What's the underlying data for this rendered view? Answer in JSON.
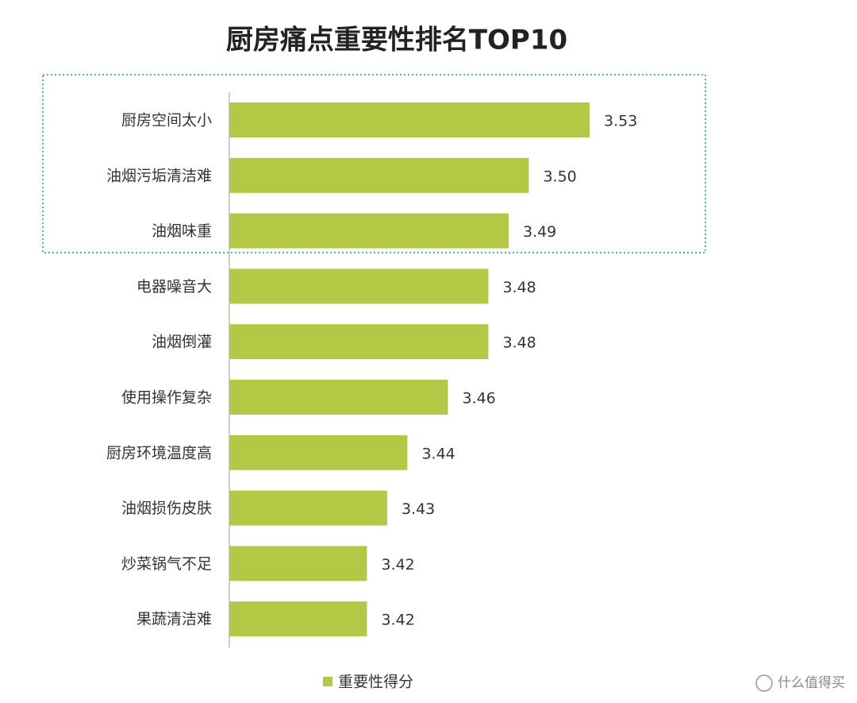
{
  "chart_data": {
    "type": "hbar",
    "title": "厨房痛点重要性排名TOP10",
    "categories": [
      "厨房空间太小",
      "油烟污垢清洁难",
      "油烟味重",
      "电器噪音大",
      "油烟倒灌",
      "使用操作复杂",
      "厨房环境温度高",
      "油烟损伤皮肤",
      "炒菜锅气不足",
      "果蔬清洁难"
    ],
    "series": [
      {
        "name": "重要性得分",
        "color": "#b5c845",
        "values": [
          3.53,
          3.5,
          3.49,
          3.48,
          3.48,
          3.46,
          3.44,
          3.43,
          3.42,
          3.42
        ],
        "value_labels": [
          "3.53",
          "3.50",
          "3.49",
          "3.48",
          "3.48",
          "3.46",
          "3.44",
          "3.43",
          "3.42",
          "3.42"
        ]
      }
    ],
    "xlim": [
      3.352,
      3.53
    ],
    "watermark": "什么值得买"
  }
}
